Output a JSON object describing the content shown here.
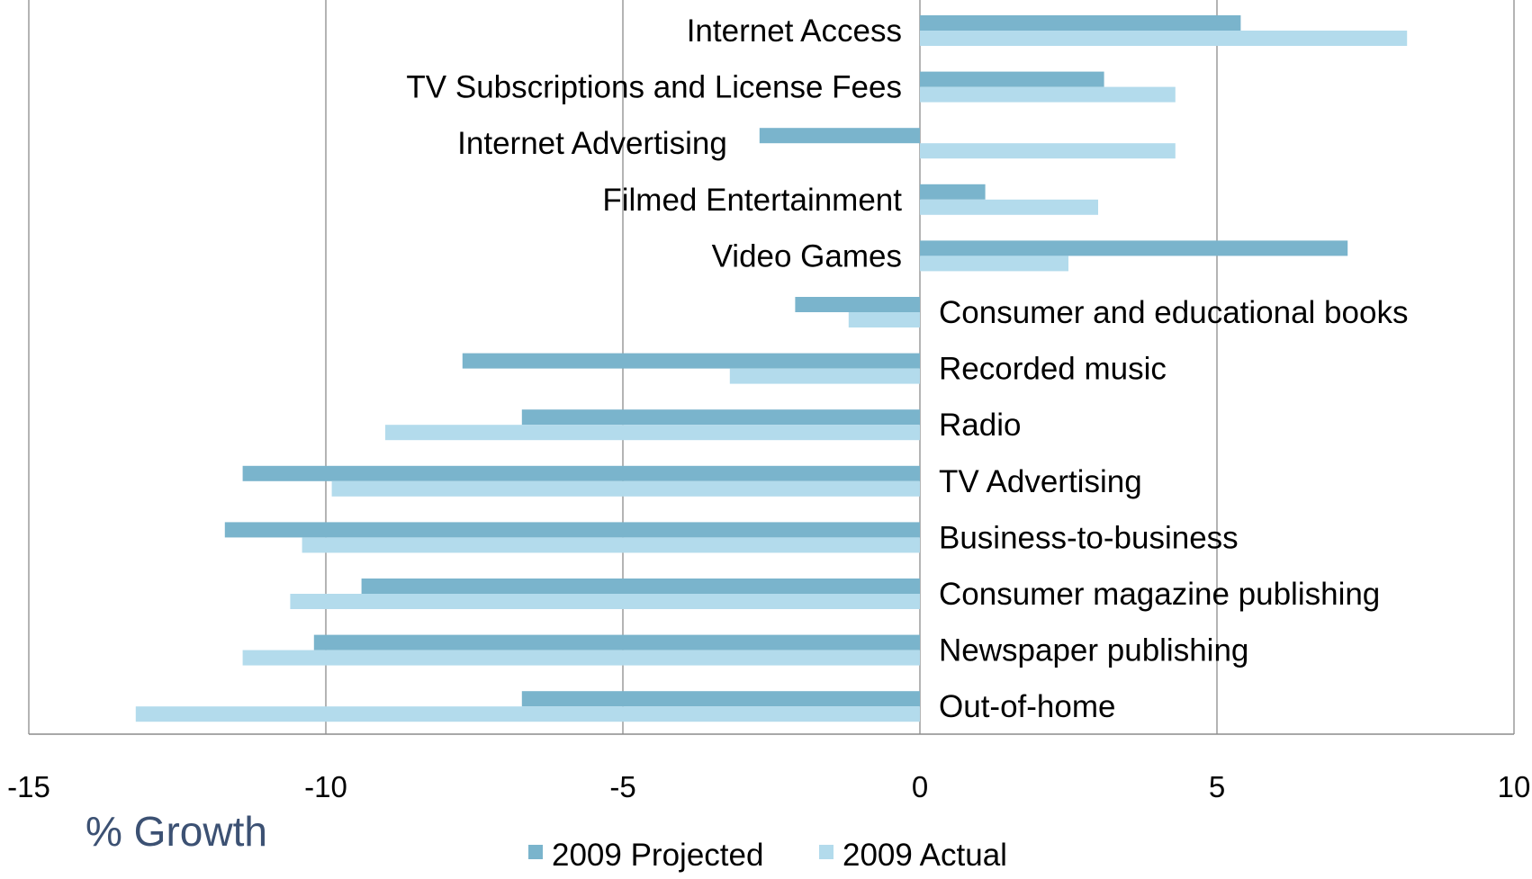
{
  "chart_data": {
    "type": "bar",
    "orientation": "horizontal",
    "xlabel": "% Growth",
    "ylabel": "",
    "xlim": [
      -15,
      10
    ],
    "x_ticks": [
      "-15",
      "-10",
      "-5",
      "0",
      "5",
      "10"
    ],
    "grid": "vertical gridlines",
    "legend_position": "bottom",
    "categories": [
      "Internet Access",
      "TV Subscriptions and License Fees",
      "Internet Advertising",
      "Filmed Entertainment",
      "Video Games",
      "Consumer and educational books",
      "Recorded music",
      "Radio",
      "TV Advertising",
      "Business-to-business",
      "Consumer magazine publishing",
      "Newspaper publishing",
      "Out-of-home"
    ],
    "series": [
      {
        "name": "2009 Projected",
        "color": "#7ab4cc",
        "values": [
          5.4,
          3.1,
          -2.7,
          1.1,
          7.2,
          -2.1,
          -7.7,
          -6.7,
          -11.4,
          -11.7,
          -9.4,
          -10.2,
          -6.7
        ]
      },
      {
        "name": "2009 Actual",
        "color": "#b3dbec",
        "values": [
          8.2,
          4.3,
          4.3,
          3.0,
          2.5,
          -1.2,
          -3.2,
          -9.0,
          -9.9,
          -10.4,
          -10.6,
          -11.4,
          -13.2
        ]
      }
    ]
  },
  "colors": {
    "axis_title": "#3c5173",
    "gridline": "#8c8c8c",
    "axis_line": "#8c8c8c"
  }
}
